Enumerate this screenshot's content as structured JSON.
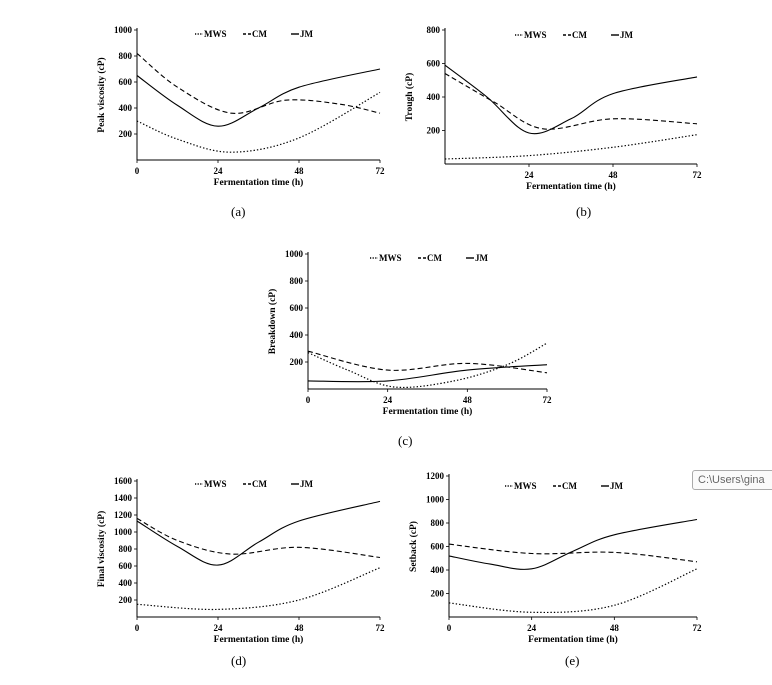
{
  "chart_data": [
    {
      "type": "line",
      "panel": "(a)",
      "xlabel": "Fermentation time (h)",
      "ylabel": "Peak viscosity (cP)",
      "xlim": [
        0,
        72
      ],
      "ylim": [
        0,
        1000
      ],
      "xticks": [
        0,
        24,
        48,
        72
      ],
      "yticks": [
        200,
        400,
        600,
        800,
        1000
      ],
      "show_zero_x": true,
      "series": [
        {
          "name": "MWS",
          "style": "dotted",
          "points": [
            [
              0,
              300
            ],
            [
              12,
              160
            ],
            [
              28,
              60
            ],
            [
              48,
              170
            ],
            [
              72,
              520
            ]
          ]
        },
        {
          "name": "CM",
          "style": "dashed",
          "points": [
            [
              0,
              820
            ],
            [
              12,
              560
            ],
            [
              28,
              360
            ],
            [
              44,
              460
            ],
            [
              60,
              430
            ],
            [
              72,
              360
            ]
          ]
        },
        {
          "name": "JM",
          "style": "solid",
          "points": [
            [
              0,
              650
            ],
            [
              12,
              420
            ],
            [
              24,
              260
            ],
            [
              36,
              400
            ],
            [
              48,
              560
            ],
            [
              72,
              700
            ]
          ]
        }
      ]
    },
    {
      "type": "line",
      "panel": "(b)",
      "xlabel": "Fermentation time (h)",
      "ylabel": "Trough (cP)",
      "xlim": [
        0,
        72
      ],
      "ylim": [
        0,
        800
      ],
      "xticks": [
        24,
        48,
        72
      ],
      "yticks": [
        200,
        400,
        600,
        800
      ],
      "show_zero_x": false,
      "series": [
        {
          "name": "MWS",
          "style": "dotted",
          "points": [
            [
              0,
              30
            ],
            [
              24,
              50
            ],
            [
              48,
              100
            ],
            [
              72,
              175
            ]
          ]
        },
        {
          "name": "CM",
          "style": "dashed",
          "points": [
            [
              0,
              540
            ],
            [
              14,
              370
            ],
            [
              28,
              210
            ],
            [
              48,
              270
            ],
            [
              72,
              240
            ]
          ]
        },
        {
          "name": "JM",
          "style": "solid",
          "points": [
            [
              0,
              590
            ],
            [
              12,
              400
            ],
            [
              24,
              185
            ],
            [
              36,
              270
            ],
            [
              48,
              420
            ],
            [
              72,
              520
            ]
          ]
        }
      ]
    },
    {
      "type": "line",
      "panel": "(c)",
      "xlabel": "Fermentation time (h)",
      "ylabel": "Breakdown (cP)",
      "xlim": [
        0,
        72
      ],
      "ylim": [
        0,
        1000
      ],
      "xticks": [
        0,
        24,
        48,
        72
      ],
      "yticks": [
        200,
        400,
        600,
        800,
        1000
      ],
      "show_zero_x": true,
      "series": [
        {
          "name": "MWS",
          "style": "dotted",
          "points": [
            [
              0,
              270
            ],
            [
              12,
              140
            ],
            [
              26,
              15
            ],
            [
              44,
              60
            ],
            [
              60,
              180
            ],
            [
              72,
              340
            ]
          ]
        },
        {
          "name": "CM",
          "style": "dashed",
          "points": [
            [
              0,
              280
            ],
            [
              24,
              140
            ],
            [
              48,
              190
            ],
            [
              72,
              120
            ]
          ]
        },
        {
          "name": "JM",
          "style": "solid",
          "points": [
            [
              0,
              60
            ],
            [
              24,
              60
            ],
            [
              48,
              140
            ],
            [
              72,
              180
            ]
          ]
        }
      ]
    },
    {
      "type": "line",
      "panel": "(d)",
      "xlabel": "Fermentation time (h)",
      "ylabel": "Final viscosity (cP)",
      "xlim": [
        0,
        72
      ],
      "ylim": [
        0,
        1600
      ],
      "xticks": [
        0,
        24,
        48,
        72
      ],
      "yticks": [
        200,
        400,
        600,
        800,
        1000,
        1200,
        1400,
        1600
      ],
      "show_zero_x": true,
      "series": [
        {
          "name": "MWS",
          "style": "dotted",
          "points": [
            [
              0,
              150
            ],
            [
              24,
              90
            ],
            [
              48,
              200
            ],
            [
              72,
              580
            ]
          ]
        },
        {
          "name": "CM",
          "style": "dashed",
          "points": [
            [
              0,
              1160
            ],
            [
              12,
              900
            ],
            [
              28,
              740
            ],
            [
              48,
              820
            ],
            [
              72,
              700
            ]
          ]
        },
        {
          "name": "JM",
          "style": "solid",
          "points": [
            [
              0,
              1130
            ],
            [
              12,
              830
            ],
            [
              24,
              610
            ],
            [
              36,
              880
            ],
            [
              48,
              1130
            ],
            [
              72,
              1360
            ]
          ]
        }
      ]
    },
    {
      "type": "line",
      "panel": "(e)",
      "xlabel": "Fermentation time (h)",
      "ylabel": "Setback (cP)",
      "xlim": [
        0,
        72
      ],
      "ylim": [
        0,
        1200
      ],
      "xticks": [
        0,
        24,
        48,
        72
      ],
      "yticks": [
        200,
        400,
        600,
        800,
        1000,
        1200
      ],
      "show_zero_x": true,
      "series": [
        {
          "name": "MWS",
          "style": "dotted",
          "points": [
            [
              0,
              120
            ],
            [
              24,
              40
            ],
            [
              48,
              100
            ],
            [
              72,
              410
            ]
          ]
        },
        {
          "name": "CM",
          "style": "dashed",
          "points": [
            [
              0,
              620
            ],
            [
              24,
              540
            ],
            [
              48,
              550
            ],
            [
              72,
              470
            ]
          ]
        },
        {
          "name": "JM",
          "style": "solid",
          "points": [
            [
              0,
              520
            ],
            [
              12,
              450
            ],
            [
              24,
              410
            ],
            [
              36,
              560
            ],
            [
              48,
              700
            ],
            [
              72,
              830
            ]
          ]
        }
      ]
    }
  ],
  "legend_labels": [
    "MWS",
    "CM",
    "JM"
  ],
  "captions": [
    "(a)",
    "(b)",
    "(c)",
    "(d)",
    "(e)"
  ],
  "tooltip": {
    "text": "C:\\Users\\gina"
  }
}
